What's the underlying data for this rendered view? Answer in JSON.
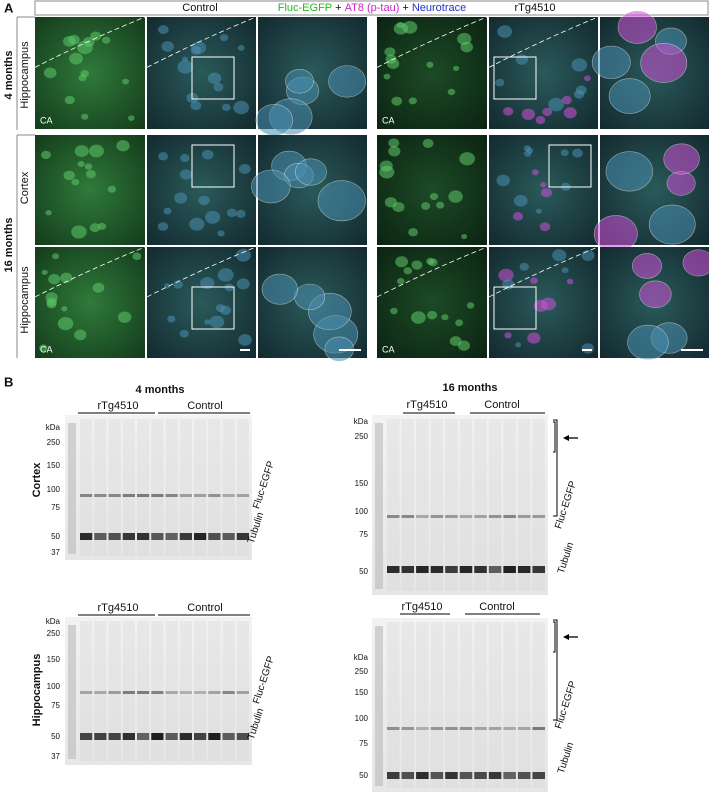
{
  "panel_a": {
    "label": "A",
    "header": {
      "left_group": "Control",
      "stain": [
        "Fluc-EGFP",
        "+",
        "AT8 (p-tau)",
        "+",
        "Neurotrace"
      ],
      "right_group": "rTg4510"
    },
    "ages": [
      "4 months",
      "16 months"
    ],
    "regions": [
      "Hippocampus",
      "Cortex",
      "Hippocampus"
    ],
    "region_tag": "CA"
  },
  "panel_b": {
    "label": "B",
    "ages": [
      "4 months",
      "16 months"
    ],
    "regions": [
      "Cortex",
      "Hippocampus"
    ],
    "groups": [
      "rTg4510",
      "Control"
    ],
    "unit": "kDa",
    "markers_4_months": [
      250,
      150,
      100,
      75,
      50,
      37
    ],
    "markers_16_months": [
      250,
      150,
      100,
      75,
      50
    ],
    "bands": [
      "Fluc-EGFP",
      "Tubulin"
    ]
  }
}
